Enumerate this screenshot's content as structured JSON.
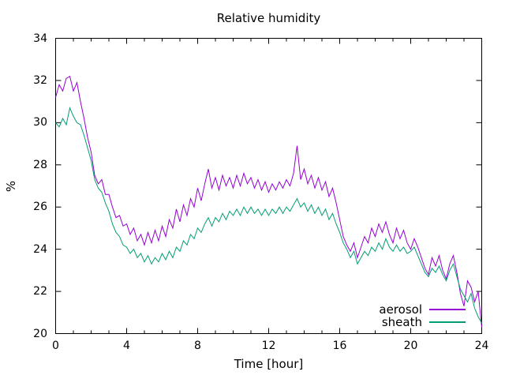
{
  "figure": {
    "background": "#ffffff",
    "border_color": "#000000",
    "text_color": "#000000"
  },
  "chart_data": {
    "type": "line",
    "title": "Relative humidity",
    "xlabel": "Time [hour]",
    "ylabel": "%",
    "xlim": [
      0,
      24
    ],
    "ylim": [
      20,
      34
    ],
    "xticks": [
      0,
      4,
      8,
      12,
      16,
      20,
      24
    ],
    "yticks": [
      20,
      22,
      24,
      26,
      28,
      30,
      32,
      34
    ],
    "x_minor_step": 1,
    "grid": false,
    "legend_position": "bottom-right",
    "x_start": 0,
    "x_step": 0.2,
    "series": [
      {
        "name": "aerosol",
        "color": "#9400d3",
        "values": [
          31.2,
          31.8,
          31.5,
          32.1,
          32.2,
          31.5,
          31.9,
          31.0,
          30.2,
          29.3,
          28.6,
          27.5,
          27.1,
          27.3,
          26.6,
          26.6,
          26.0,
          25.5,
          25.6,
          25.1,
          25.2,
          24.7,
          25.0,
          24.4,
          24.7,
          24.2,
          24.8,
          24.3,
          24.9,
          24.4,
          25.1,
          24.6,
          25.4,
          25.0,
          25.9,
          25.3,
          26.1,
          25.6,
          26.4,
          26.0,
          26.9,
          26.3,
          27.1,
          27.8,
          26.9,
          27.4,
          26.8,
          27.5,
          27.0,
          27.4,
          26.9,
          27.5,
          27.0,
          27.6,
          27.1,
          27.4,
          26.9,
          27.3,
          26.8,
          27.2,
          26.7,
          27.1,
          26.8,
          27.2,
          26.9,
          27.3,
          27.0,
          27.6,
          28.9,
          27.3,
          27.8,
          27.1,
          27.5,
          26.9,
          27.4,
          26.8,
          27.2,
          26.5,
          26.9,
          26.2,
          25.4,
          24.6,
          24.2,
          23.9,
          24.3,
          23.6,
          24.1,
          24.6,
          24.3,
          25.0,
          24.6,
          25.2,
          24.8,
          25.3,
          24.7,
          24.3,
          25.0,
          24.5,
          24.9,
          24.3,
          24.0,
          24.5,
          24.1,
          23.6,
          23.1,
          22.8,
          23.6,
          23.2,
          23.7,
          23.0,
          22.6,
          23.3,
          23.7,
          22.9,
          21.9,
          21.3,
          22.5,
          22.2,
          21.5,
          22.0,
          20.3
        ]
      },
      {
        "name": "sheath",
        "color": "#009e73",
        "values": [
          30.0,
          29.8,
          30.2,
          29.9,
          30.7,
          30.3,
          30.0,
          29.9,
          29.4,
          28.8,
          28.2,
          27.3,
          26.9,
          26.7,
          26.2,
          25.8,
          25.2,
          24.8,
          24.6,
          24.2,
          24.1,
          23.8,
          24.0,
          23.6,
          23.8,
          23.4,
          23.7,
          23.3,
          23.6,
          23.4,
          23.8,
          23.5,
          23.9,
          23.6,
          24.1,
          23.9,
          24.4,
          24.2,
          24.7,
          24.5,
          25.0,
          24.8,
          25.2,
          25.5,
          25.1,
          25.5,
          25.3,
          25.7,
          25.4,
          25.8,
          25.6,
          25.9,
          25.6,
          26.0,
          25.7,
          26.0,
          25.7,
          25.9,
          25.6,
          25.9,
          25.6,
          25.9,
          25.7,
          26.0,
          25.7,
          26.0,
          25.8,
          26.1,
          26.4,
          26.0,
          26.2,
          25.8,
          26.1,
          25.7,
          26.0,
          25.6,
          25.9,
          25.4,
          25.7,
          25.2,
          24.8,
          24.3,
          24.0,
          23.6,
          23.9,
          23.3,
          23.6,
          23.9,
          23.7,
          24.1,
          23.9,
          24.3,
          24.0,
          24.5,
          24.1,
          23.9,
          24.2,
          23.9,
          24.1,
          23.8,
          23.9,
          24.1,
          23.7,
          23.3,
          22.9,
          22.7,
          23.1,
          22.9,
          23.2,
          22.8,
          22.5,
          23.0,
          23.3,
          22.7,
          22.1,
          21.8,
          21.5,
          21.9,
          21.2,
          20.8,
          20.5
        ]
      }
    ]
  }
}
